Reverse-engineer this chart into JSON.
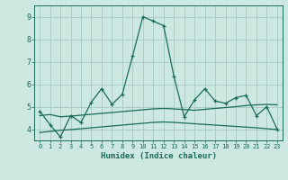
{
  "xlabel": "Humidex (Indice chaleur)",
  "background_color": "#cce8e0",
  "grid_color": "#aacfc8",
  "line_color": "#1a6b5a",
  "x_values": [
    0,
    1,
    2,
    3,
    4,
    5,
    6,
    7,
    8,
    9,
    10,
    11,
    12,
    13,
    14,
    15,
    16,
    17,
    18,
    19,
    20,
    21,
    22,
    23
  ],
  "main_y": [
    4.8,
    4.2,
    3.65,
    4.6,
    4.3,
    5.2,
    5.8,
    5.1,
    5.55,
    7.25,
    9.0,
    8.8,
    8.6,
    6.35,
    4.55,
    5.3,
    5.8,
    5.25,
    5.15,
    5.4,
    5.5,
    4.6,
    5.0,
    4.0
  ],
  "lower_line_y": [
    3.85,
    3.9,
    3.95,
    3.98,
    4.02,
    4.06,
    4.1,
    4.14,
    4.18,
    4.22,
    4.26,
    4.3,
    4.32,
    4.3,
    4.27,
    4.24,
    4.21,
    4.18,
    4.15,
    4.12,
    4.09,
    4.06,
    4.02,
    3.98
  ],
  "upper_line_y": [
    4.6,
    4.65,
    4.55,
    4.58,
    4.62,
    4.66,
    4.7,
    4.74,
    4.78,
    4.82,
    4.86,
    4.9,
    4.92,
    4.9,
    4.87,
    4.84,
    4.88,
    4.92,
    4.96,
    5.0,
    5.05,
    5.08,
    5.1,
    5.08
  ],
  "ylim": [
    3.5,
    9.5
  ],
  "xlim": [
    -0.5,
    23.5
  ],
  "yticks": [
    4,
    5,
    6,
    7,
    8,
    9
  ],
  "xticks": [
    0,
    1,
    2,
    3,
    4,
    5,
    6,
    7,
    8,
    9,
    10,
    11,
    12,
    13,
    14,
    15,
    16,
    17,
    18,
    19,
    20,
    21,
    22,
    23
  ]
}
